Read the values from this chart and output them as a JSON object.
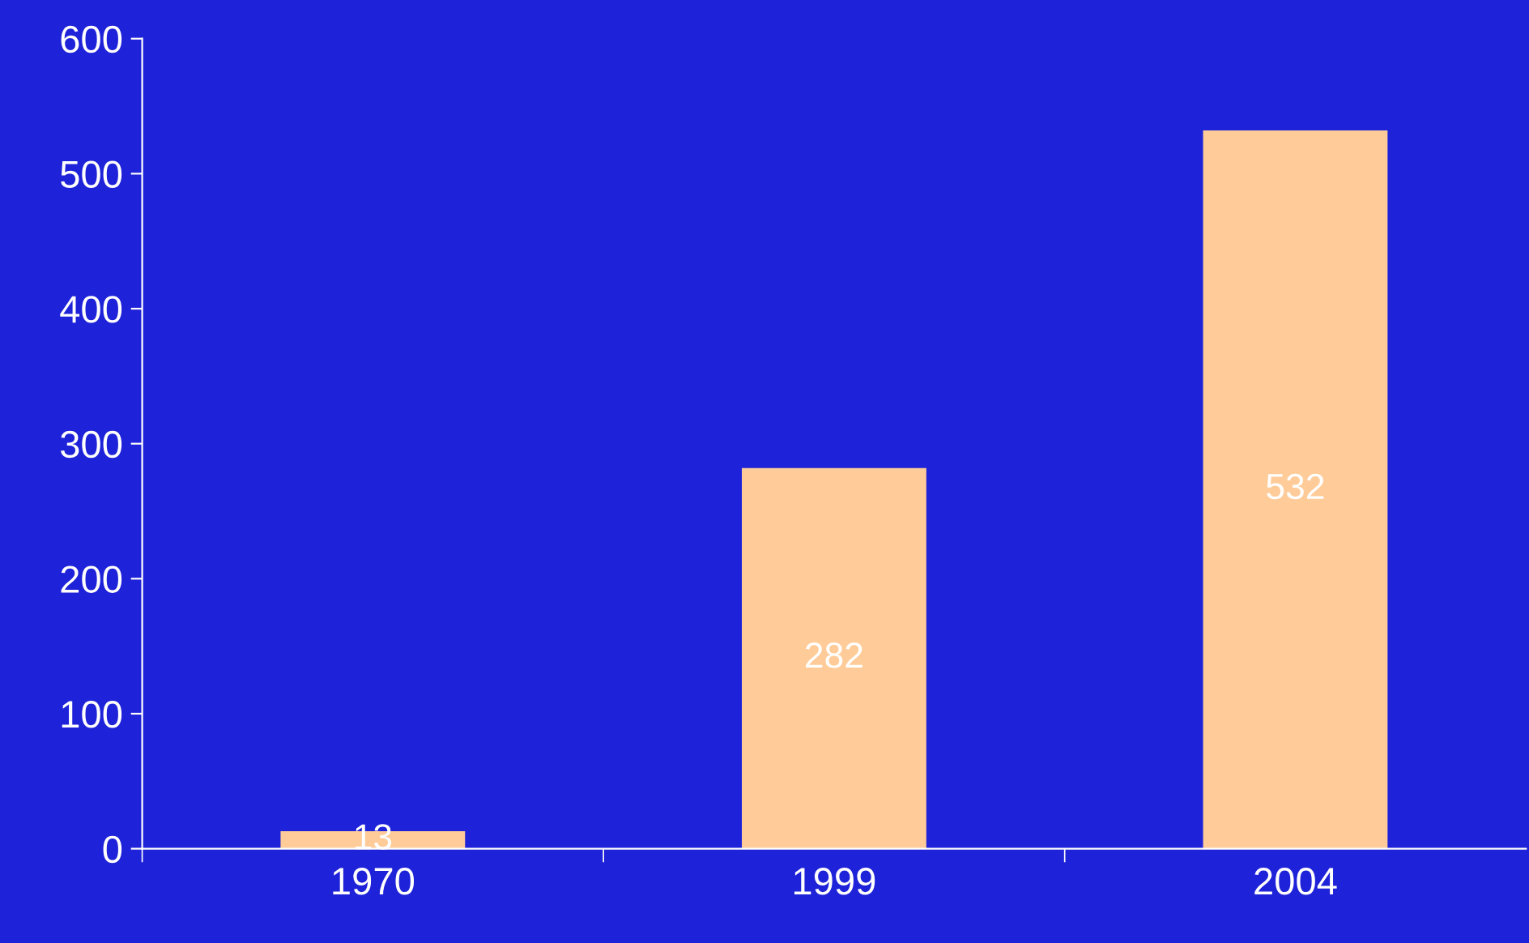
{
  "chart_data": {
    "type": "bar",
    "categories": [
      "1970",
      "1999",
      "2004"
    ],
    "values": [
      13,
      282,
      532
    ],
    "color": "#ffcc99",
    "ylim": [
      0,
      600
    ],
    "yticks": [
      0,
      100,
      200,
      300,
      400,
      500,
      600
    ],
    "data_labels": true,
    "grid": false,
    "legend": false
  }
}
